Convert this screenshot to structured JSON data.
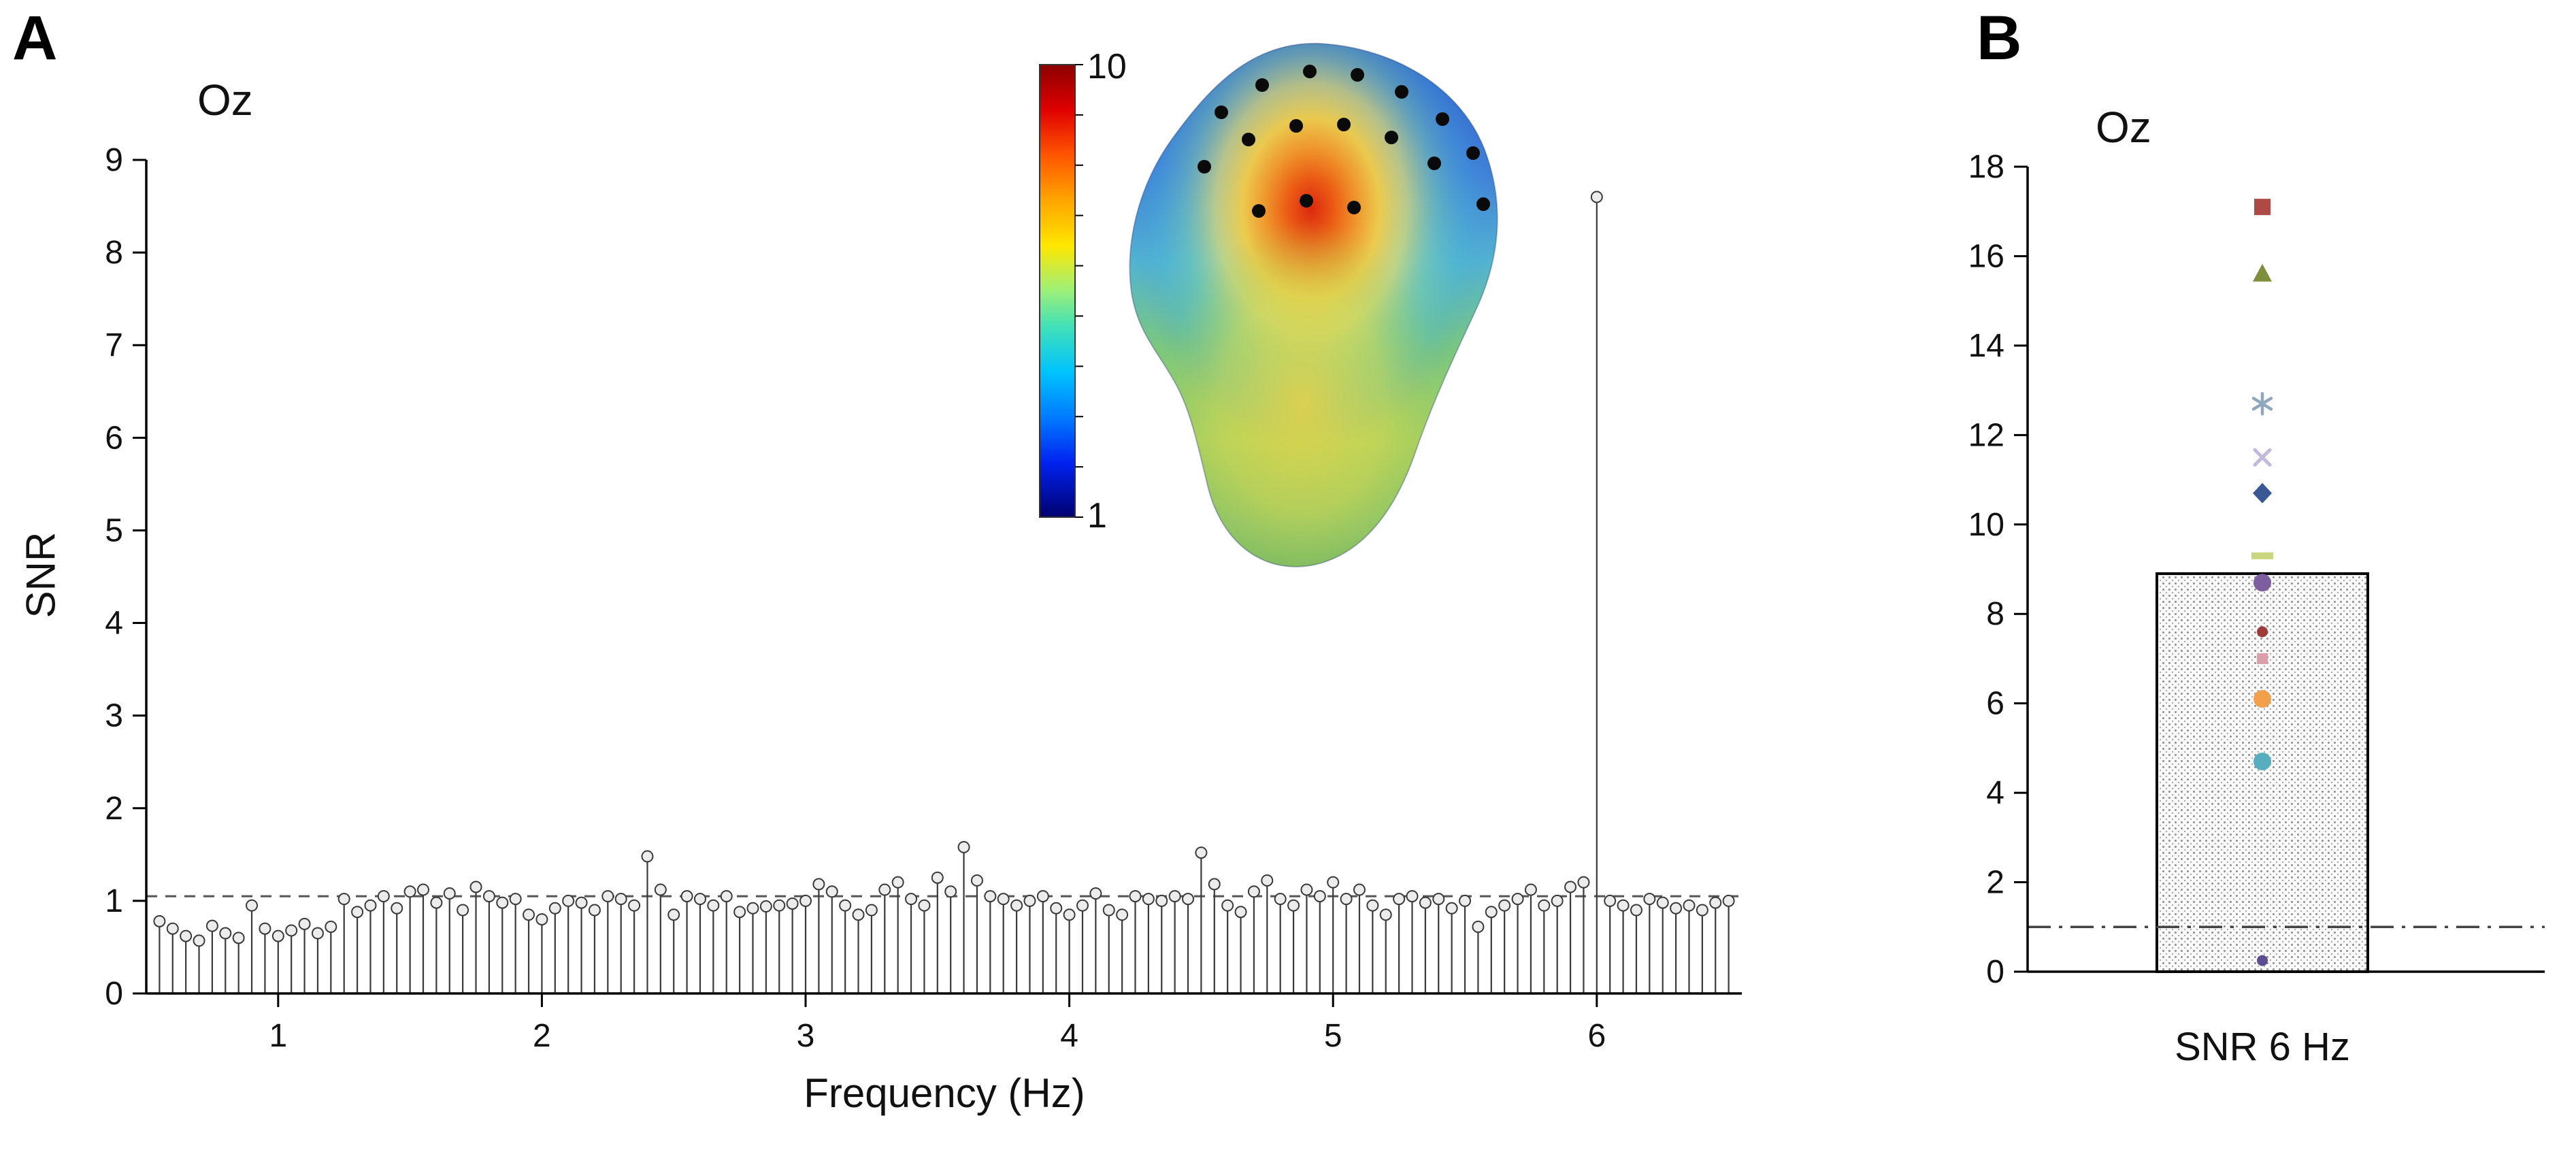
{
  "figure": {
    "panel_a": {
      "panel_label": "A",
      "title": "Oz",
      "xlabel": "Frequency (Hz)",
      "ylabel": "SNR"
    },
    "panel_b": {
      "panel_label": "B",
      "title": "Oz",
      "xlabel": "SNR 6 Hz"
    },
    "colorbar": {
      "max_label": "10",
      "min_label": "1"
    }
  },
  "topography": {
    "colorbar_range": [
      1,
      10
    ],
    "electrode_positions": [
      [
        295,
        115
      ],
      [
        355,
        75
      ],
      [
        425,
        55
      ],
      [
        495,
        60
      ],
      [
        560,
        85
      ],
      [
        620,
        125
      ],
      [
        665,
        175
      ],
      [
        270,
        195
      ],
      [
        335,
        155
      ],
      [
        405,
        135
      ],
      [
        475,
        133
      ],
      [
        545,
        152
      ],
      [
        608,
        190
      ],
      [
        350,
        260
      ],
      [
        420,
        245
      ],
      [
        490,
        255
      ],
      [
        680,
        250
      ]
    ]
  },
  "chart_data": [
    {
      "type": "stem",
      "panel": "A",
      "title": "Oz",
      "xlabel": "Frequency (Hz)",
      "ylabel": "SNR",
      "xlim": [
        0.5,
        6.55
      ],
      "ylim": [
        0,
        9
      ],
      "xticks": [
        1,
        2,
        3,
        4,
        5,
        6
      ],
      "yticks": [
        0,
        1,
        2,
        3,
        4,
        5,
        6,
        7,
        8,
        9
      ],
      "noise_floor": 1.05,
      "peak": {
        "frequency": 6.0,
        "snr": 8.6
      },
      "x_start": 0.55,
      "x_step": 0.05,
      "values": [
        0.78,
        0.7,
        0.62,
        0.57,
        0.73,
        0.65,
        0.6,
        0.95,
        0.7,
        0.62,
        0.68,
        0.75,
        0.65,
        0.72,
        1.02,
        0.88,
        0.95,
        1.05,
        0.92,
        1.1,
        1.12,
        0.98,
        1.08,
        0.9,
        1.15,
        1.05,
        0.98,
        1.02,
        0.85,
        0.8,
        0.92,
        1.0,
        0.98,
        0.9,
        1.05,
        1.02,
        0.95,
        1.48,
        1.12,
        0.85,
        1.05,
        1.02,
        0.95,
        1.05,
        0.88,
        0.92,
        0.94,
        0.95,
        0.97,
        1.0,
        1.18,
        1.1,
        0.95,
        0.85,
        0.9,
        1.12,
        1.2,
        1.02,
        0.95,
        1.25,
        1.1,
        1.58,
        1.22,
        1.05,
        1.02,
        0.95,
        1.0,
        1.05,
        0.92,
        0.85,
        0.95,
        1.08,
        0.9,
        0.85,
        1.05,
        1.02,
        1.0,
        1.05,
        1.02,
        1.52,
        1.18,
        0.95,
        0.88,
        1.1,
        1.22,
        1.02,
        0.95,
        1.12,
        1.05,
        1.2,
        1.02,
        1.12,
        0.95,
        0.85,
        1.02,
        1.05,
        0.98,
        1.02,
        0.92,
        1.0,
        0.72,
        0.88,
        0.95,
        1.02,
        1.12,
        0.95,
        1.0,
        1.15,
        1.2,
        8.6,
        1.0,
        0.95,
        0.9,
        1.02,
        0.98,
        0.92,
        0.95,
        0.9,
        0.98,
        1.0
      ]
    },
    {
      "type": "bar",
      "panel": "B",
      "title": "Oz",
      "categories": [
        "SNR 6 Hz"
      ],
      "bar_value": 8.9,
      "ylim": [
        0,
        18
      ],
      "yticks": [
        0,
        2,
        4,
        6,
        8,
        10,
        12,
        14,
        16,
        18
      ],
      "threshold_line": 1.0,
      "points": [
        {
          "snr": 17.1,
          "marker": "square",
          "color": "#AE4A45"
        },
        {
          "snr": 15.6,
          "marker": "triangle",
          "color": "#7E8F3C"
        },
        {
          "snr": 12.7,
          "marker": "asterisk",
          "color": "#8FA8BF"
        },
        {
          "snr": 11.5,
          "marker": "x",
          "color": "#C3B9DA"
        },
        {
          "snr": 10.7,
          "marker": "diamond",
          "color": "#3A5894"
        },
        {
          "snr": 9.3,
          "marker": "dash",
          "color": "#C9D57F"
        },
        {
          "snr": 8.7,
          "marker": "circle",
          "color": "#7D5FA0"
        },
        {
          "snr": 7.6,
          "marker": "dot",
          "color": "#9E3B38"
        },
        {
          "snr": 7.0,
          "marker": "small-square",
          "color": "#DB9FA8"
        },
        {
          "snr": 6.1,
          "marker": "circle",
          "color": "#F2A04B"
        },
        {
          "snr": 4.7,
          "marker": "circle",
          "color": "#56AEBE"
        },
        {
          "snr": 0.25,
          "marker": "dot",
          "color": "#5C4E8E"
        }
      ]
    }
  ]
}
